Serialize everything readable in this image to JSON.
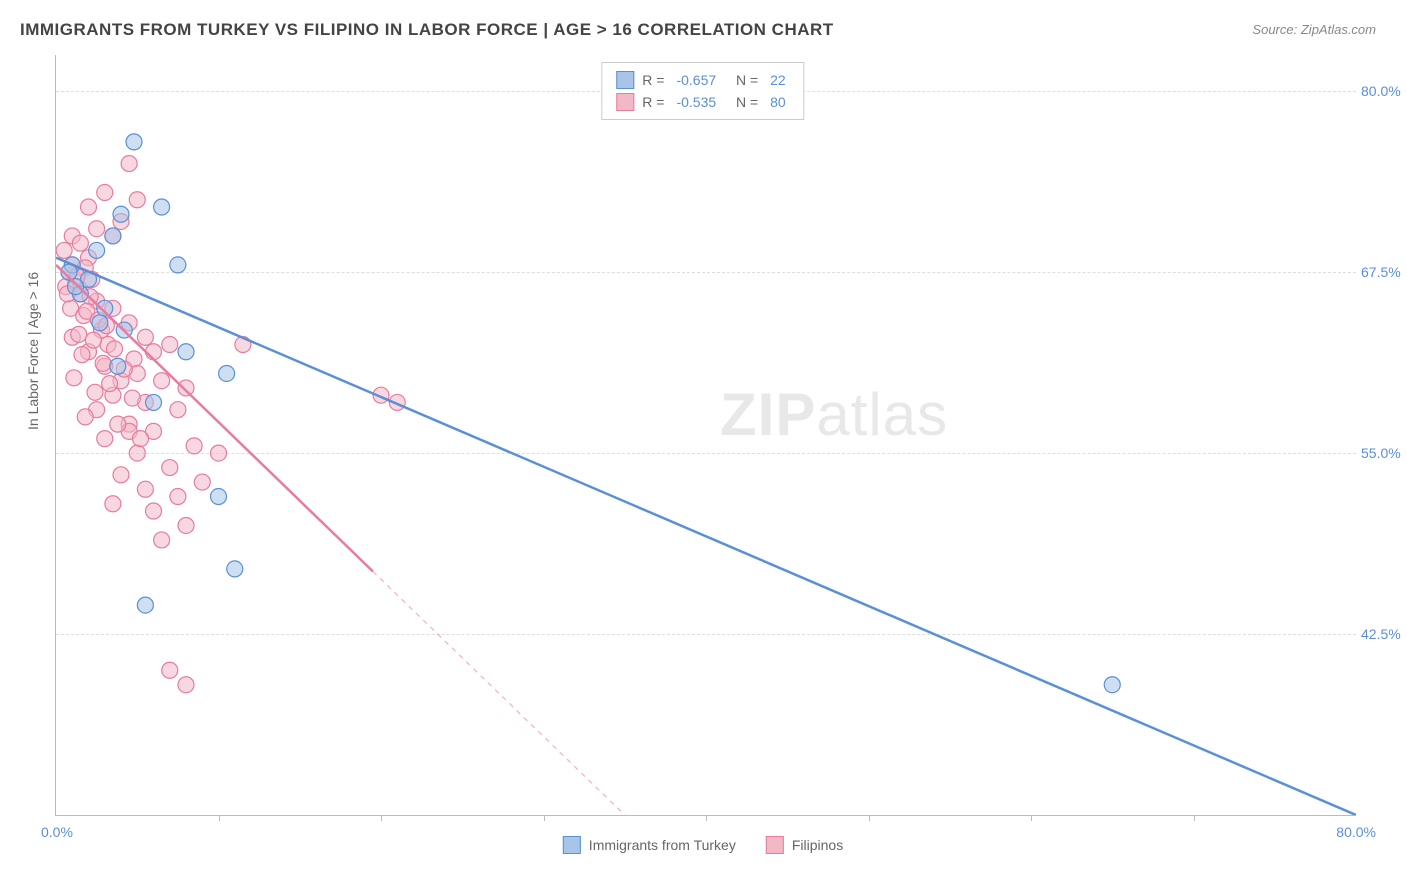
{
  "title": "IMMIGRANTS FROM TURKEY VS FILIPINO IN LABOR FORCE | AGE > 16 CORRELATION CHART",
  "source_label": "Source:",
  "source_name": "ZipAtlas.com",
  "y_axis_label": "In Labor Force | Age > 16",
  "watermark_bold": "ZIP",
  "watermark_light": "atlas",
  "chart": {
    "type": "scatter",
    "xlim": [
      0,
      80
    ],
    "ylim": [
      30,
      82.5
    ],
    "x_tick_min_label": "0.0%",
    "x_tick_max_label": "80.0%",
    "x_tick_positions": [
      10,
      20,
      30,
      40,
      50,
      60,
      70
    ],
    "y_ticks": [
      {
        "value": 80.0,
        "label": "80.0%"
      },
      {
        "value": 67.5,
        "label": "67.5%"
      },
      {
        "value": 55.0,
        "label": "55.0%"
      },
      {
        "value": 42.5,
        "label": "42.5%"
      }
    ],
    "grid_color": "#dddddd",
    "background_color": "#ffffff",
    "series": [
      {
        "name": "Immigrants from Turkey",
        "color_fill": "#a8c5e8",
        "color_stroke": "#5b8fd6",
        "fill_opacity": 0.55,
        "marker_radius": 8,
        "R": "-0.657",
        "N": "22",
        "trend": {
          "x1": 0,
          "y1": 68.5,
          "x2": 80,
          "y2": 30.0,
          "solid_until_x": 80
        },
        "points": [
          [
            4.8,
            76.5
          ],
          [
            4.0,
            71.5
          ],
          [
            6.5,
            72.0
          ],
          [
            3.5,
            70.0
          ],
          [
            7.5,
            68.0
          ],
          [
            1.0,
            68.0
          ],
          [
            2.0,
            67.0
          ],
          [
            1.5,
            66.0
          ],
          [
            8.0,
            62.0
          ],
          [
            10.5,
            60.5
          ],
          [
            10.0,
            52.0
          ],
          [
            11.0,
            47.0
          ],
          [
            5.5,
            44.5
          ],
          [
            65.0,
            39.0
          ],
          [
            2.5,
            69.0
          ],
          [
            3.0,
            65.0
          ],
          [
            0.8,
            67.5
          ],
          [
            1.2,
            66.5
          ],
          [
            4.2,
            63.5
          ],
          [
            2.7,
            64.0
          ],
          [
            3.8,
            61.0
          ],
          [
            6.0,
            58.5
          ]
        ]
      },
      {
        "name": "Filipinos",
        "color_fill": "#f2b8c6",
        "color_stroke": "#e87ba0",
        "fill_opacity": 0.55,
        "marker_radius": 8,
        "R": "-0.535",
        "N": "80",
        "trend": {
          "x1": 0,
          "y1": 68.0,
          "x2": 35,
          "y2": 30.0,
          "solid_until_x": 19.5,
          "dash_to_x": 35
        },
        "points": [
          [
            4.5,
            75.0
          ],
          [
            3.0,
            73.0
          ],
          [
            5.0,
            72.5
          ],
          [
            2.0,
            72.0
          ],
          [
            4.0,
            71.0
          ],
          [
            2.5,
            70.5
          ],
          [
            3.5,
            70.0
          ],
          [
            1.0,
            70.0
          ],
          [
            1.5,
            69.5
          ],
          [
            0.5,
            69.0
          ],
          [
            2.0,
            68.5
          ],
          [
            1.0,
            68.0
          ],
          [
            1.8,
            67.8
          ],
          [
            0.8,
            67.5
          ],
          [
            2.2,
            67.0
          ],
          [
            1.2,
            66.8
          ],
          [
            0.6,
            66.5
          ],
          [
            1.5,
            66.0
          ],
          [
            2.5,
            65.5
          ],
          [
            3.5,
            65.0
          ],
          [
            0.9,
            65.0
          ],
          [
            1.7,
            64.5
          ],
          [
            4.5,
            64.0
          ],
          [
            2.8,
            63.5
          ],
          [
            1.0,
            63.0
          ],
          [
            5.5,
            63.0
          ],
          [
            3.2,
            62.5
          ],
          [
            6.0,
            62.0
          ],
          [
            2.0,
            62.0
          ],
          [
            4.8,
            61.5
          ],
          [
            3.0,
            61.0
          ],
          [
            7.0,
            62.5
          ],
          [
            5.0,
            60.5
          ],
          [
            6.5,
            60.0
          ],
          [
            4.0,
            60.0
          ],
          [
            8.0,
            59.5
          ],
          [
            3.5,
            59.0
          ],
          [
            5.5,
            58.5
          ],
          [
            2.5,
            58.0
          ],
          [
            7.5,
            58.0
          ],
          [
            11.5,
            62.5
          ],
          [
            4.5,
            57.0
          ],
          [
            6.0,
            56.5
          ],
          [
            3.0,
            56.0
          ],
          [
            8.5,
            55.5
          ],
          [
            5.0,
            55.0
          ],
          [
            20.0,
            59.0
          ],
          [
            21.0,
            58.5
          ],
          [
            7.0,
            54.0
          ],
          [
            4.0,
            53.5
          ],
          [
            9.0,
            53.0
          ],
          [
            5.5,
            52.5
          ],
          [
            7.5,
            52.0
          ],
          [
            3.5,
            51.5
          ],
          [
            6.0,
            51.0
          ],
          [
            8.0,
            50.0
          ],
          [
            4.5,
            56.5
          ],
          [
            10.0,
            55.0
          ],
          [
            6.5,
            49.0
          ],
          [
            7.0,
            40.0
          ],
          [
            8.0,
            39.0
          ],
          [
            1.3,
            67.2
          ],
          [
            0.7,
            66.0
          ],
          [
            2.1,
            65.8
          ],
          [
            1.9,
            64.8
          ],
          [
            2.6,
            64.2
          ],
          [
            3.1,
            63.8
          ],
          [
            1.4,
            63.2
          ],
          [
            2.3,
            62.8
          ],
          [
            3.6,
            62.2
          ],
          [
            1.6,
            61.8
          ],
          [
            2.9,
            61.2
          ],
          [
            4.2,
            60.8
          ],
          [
            1.1,
            60.2
          ],
          [
            3.3,
            59.8
          ],
          [
            2.4,
            59.2
          ],
          [
            4.7,
            58.8
          ],
          [
            1.8,
            57.5
          ],
          [
            3.8,
            57.0
          ],
          [
            5.2,
            56.0
          ]
        ]
      }
    ]
  },
  "legend_bottom": [
    {
      "label": "Immigrants from Turkey",
      "fill": "#a8c5e8",
      "stroke": "#5b8fd6"
    },
    {
      "label": "Filipinos",
      "fill": "#f2b8c6",
      "stroke": "#e87ba0"
    }
  ]
}
